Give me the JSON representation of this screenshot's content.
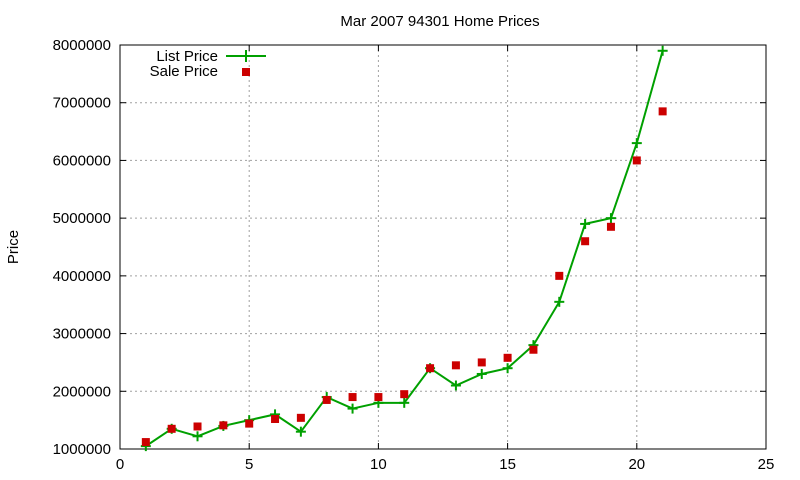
{
  "chart_data": {
    "type": "line",
    "title": "Mar 2007 94301 Home Prices",
    "xlabel": "",
    "ylabel": "Price",
    "xlim": [
      0,
      25
    ],
    "ylim": [
      1000000,
      8000000
    ],
    "x_ticks": [
      "0",
      "5",
      "10",
      "15",
      "20",
      "25"
    ],
    "y_ticks": [
      "1000000",
      "2000000",
      "3000000",
      "4000000",
      "5000000",
      "6000000",
      "7000000",
      "8000000"
    ],
    "grid": true,
    "legend_position": "top-left",
    "series": [
      {
        "name": "List Price",
        "style": "line-with-plus-markers",
        "color": "#00a000",
        "x": [
          1,
          2,
          3,
          4,
          5,
          6,
          7,
          8,
          9,
          10,
          11,
          12,
          13,
          14,
          15,
          16,
          17,
          18,
          19,
          20,
          21
        ],
        "y": [
          1050000,
          1350000,
          1220000,
          1400000,
          1500000,
          1600000,
          1300000,
          1900000,
          1700000,
          1800000,
          1800000,
          2400000,
          2100000,
          2300000,
          2400000,
          2800000,
          3550000,
          4900000,
          5000000,
          6300000,
          7900000
        ]
      },
      {
        "name": "Sale Price",
        "style": "square-markers",
        "color": "#cc0000",
        "x": [
          1,
          2,
          3,
          4,
          5,
          6,
          7,
          8,
          9,
          10,
          11,
          12,
          13,
          14,
          15,
          16,
          17,
          18,
          19,
          20,
          21
        ],
        "y": [
          1120000,
          1350000,
          1390000,
          1410000,
          1440000,
          1520000,
          1540000,
          1850000,
          1900000,
          1900000,
          1950000,
          2400000,
          2450000,
          2500000,
          2580000,
          2720000,
          4000000,
          4600000,
          4850000,
          6000000,
          6850000
        ]
      }
    ]
  }
}
